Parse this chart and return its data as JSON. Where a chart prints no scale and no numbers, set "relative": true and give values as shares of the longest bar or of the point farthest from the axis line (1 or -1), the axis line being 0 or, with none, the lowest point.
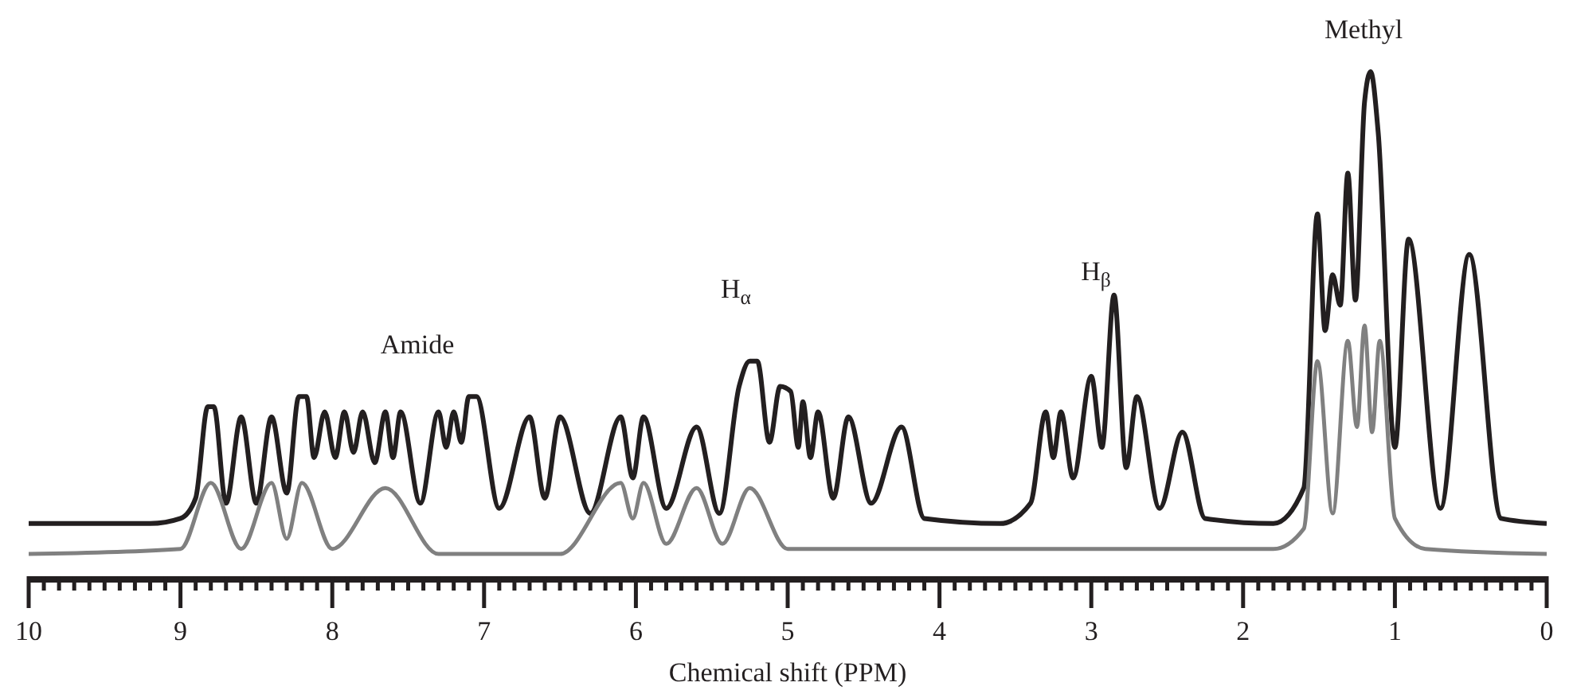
{
  "chart_data": {
    "type": "line",
    "relative": true,
    "xlabel": "Chemical shift (PPM)",
    "xlim": [
      10,
      0
    ],
    "xticks": [
      10,
      {
        "value": 9.9,
        "label": null
      },
      {
        "value": 9.8,
        "label": null
      },
      {
        "value": 9.7,
        "label": null
      },
      {
        "value": 9.6,
        "label": null
      },
      {
        "value": 9.5,
        "label": null
      },
      {
        "value": 9.4,
        "label": null
      },
      {
        "value": 9.3,
        "label": null
      },
      {
        "value": 9.2,
        "label": null
      },
      {
        "value": 9.1,
        "label": null
      },
      9,
      {
        "value": 8.9,
        "label": null
      },
      {
        "value": 8.8,
        "label": null
      },
      {
        "value": 8.7,
        "label": null
      },
      {
        "value": 8.6,
        "label": null
      },
      {
        "value": 8.5,
        "label": null
      },
      {
        "value": 8.4,
        "label": null
      },
      {
        "value": 8.3,
        "label": null
      },
      {
        "value": 8.2,
        "label": null
      },
      {
        "value": 8.1,
        "label": null
      },
      8,
      {
        "value": 7.9,
        "label": null
      },
      {
        "value": 7.8,
        "label": null
      },
      {
        "value": 7.7,
        "label": null
      },
      {
        "value": 7.6,
        "label": null
      },
      {
        "value": 7.5,
        "label": null
      },
      {
        "value": 7.4,
        "label": null
      },
      {
        "value": 7.3,
        "label": null
      },
      {
        "value": 7.2,
        "label": null
      },
      {
        "value": 7.1,
        "label": null
      },
      7,
      {
        "value": 6.9,
        "label": null
      },
      {
        "value": 6.8,
        "label": null
      },
      {
        "value": 6.7,
        "label": null
      },
      {
        "value": 6.6,
        "label": null
      },
      {
        "value": 6.5,
        "label": null
      },
      {
        "value": 6.4,
        "label": null
      },
      {
        "value": 6.3,
        "label": null
      },
      {
        "value": 6.2,
        "label": null
      },
      {
        "value": 6.1,
        "label": null
      },
      6,
      {
        "value": 5.9,
        "label": null
      },
      {
        "value": 5.8,
        "label": null
      },
      {
        "value": 5.7,
        "label": null
      },
      {
        "value": 5.6,
        "label": null
      },
      {
        "value": 5.5,
        "label": null
      },
      {
        "value": 5.4,
        "label": null
      },
      {
        "value": 5.3,
        "label": null
      },
      {
        "value": 5.2,
        "label": null
      },
      {
        "value": 5.1,
        "label": null
      },
      5,
      {
        "value": 4.9,
        "label": null
      },
      {
        "value": 4.8,
        "label": null
      },
      {
        "value": 4.7,
        "label": null
      },
      {
        "value": 4.6,
        "label": null
      },
      {
        "value": 4.5,
        "label": null
      },
      {
        "value": 4.4,
        "label": null
      },
      {
        "value": 4.3,
        "label": null
      },
      {
        "value": 4.2,
        "label": null
      },
      {
        "value": 4.1,
        "label": null
      },
      4,
      {
        "value": 3.9,
        "label": null
      },
      {
        "value": 3.8,
        "label": null
      },
      {
        "value": 3.7,
        "label": null
      },
      {
        "value": 3.6,
        "label": null
      },
      {
        "value": 3.5,
        "label": null
      },
      {
        "value": 3.4,
        "label": null
      },
      {
        "value": 3.3,
        "label": null
      },
      {
        "value": 3.2,
        "label": null
      },
      {
        "value": 3.1,
        "label": null
      },
      3,
      {
        "value": 2.9,
        "label": null
      },
      {
        "value": 2.8,
        "label": null
      },
      {
        "value": 2.7,
        "label": null
      },
      {
        "value": 2.6,
        "label": null
      },
      {
        "value": 2.5,
        "label": null
      },
      {
        "value": 2.4,
        "label": null
      },
      {
        "value": 2.3,
        "label": null
      },
      {
        "value": 2.2,
        "label": null
      },
      {
        "value": 2.1,
        "label": null
      },
      2,
      {
        "value": 1.9,
        "label": null
      },
      {
        "value": 1.8,
        "label": null
      },
      {
        "value": 1.7,
        "label": null
      },
      {
        "value": 1.6,
        "label": null
      },
      {
        "value": 1.5,
        "label": null
      },
      {
        "value": 1.4,
        "label": null
      },
      {
        "value": 1.3,
        "label": null
      },
      {
        "value": 1.2,
        "label": null
      },
      {
        "value": 1.1,
        "label": null
      },
      1,
      {
        "value": 0.9,
        "label": null
      },
      {
        "value": 0.8,
        "label": null
      },
      {
        "value": 0.7,
        "label": null
      },
      {
        "value": 0.6,
        "label": null
      },
      {
        "value": 0.5,
        "label": null
      },
      {
        "value": 0.4,
        "label": null
      },
      {
        "value": 0.3,
        "label": null
      },
      {
        "value": 0.2,
        "label": null
      },
      {
        "value": 0.1,
        "label": null
      },
      0
    ],
    "series": [
      {
        "color": "#231f20",
        "x": [
          10,
          9.2,
          9.0,
          8.9,
          8.82,
          8.78,
          8.7,
          8.6,
          8.5,
          8.4,
          8.3,
          8.22,
          8.17,
          8.12,
          8.05,
          7.98,
          7.92,
          7.86,
          7.8,
          7.72,
          7.65,
          7.6,
          7.55,
          7.42,
          7.3,
          7.25,
          7.2,
          7.15,
          7.1,
          7.05,
          6.9,
          6.7,
          6.6,
          6.5,
          6.3,
          6.1,
          6.02,
          5.95,
          5.8,
          5.6,
          5.45,
          5.32,
          5.25,
          5.2,
          5.12,
          5.05,
          4.98,
          4.93,
          4.9,
          4.85,
          4.8,
          4.7,
          4.6,
          4.45,
          4.25,
          4.1,
          3.6,
          3.4,
          3.3,
          3.25,
          3.2,
          3.12,
          3.0,
          2.93,
          2.85,
          2.77,
          2.7,
          2.55,
          2.4,
          2.25,
          1.8,
          1.6,
          1.51,
          1.46,
          1.41,
          1.36,
          1.31,
          1.26,
          1.2,
          1.16,
          1.11,
          1.0,
          0.91,
          0.7,
          0.51,
          0.3,
          0
        ],
        "values": [
          0.11,
          0.11,
          0.12,
          0.16,
          0.34,
          0.34,
          0.15,
          0.32,
          0.15,
          0.32,
          0.17,
          0.36,
          0.36,
          0.24,
          0.33,
          0.24,
          0.33,
          0.25,
          0.33,
          0.23,
          0.33,
          0.24,
          0.33,
          0.15,
          0.33,
          0.26,
          0.33,
          0.27,
          0.36,
          0.36,
          0.14,
          0.32,
          0.16,
          0.32,
          0.13,
          0.32,
          0.2,
          0.32,
          0.14,
          0.3,
          0.13,
          0.38,
          0.43,
          0.43,
          0.27,
          0.38,
          0.37,
          0.26,
          0.35,
          0.24,
          0.33,
          0.16,
          0.32,
          0.15,
          0.3,
          0.12,
          0.11,
          0.15,
          0.33,
          0.24,
          0.33,
          0.2,
          0.4,
          0.26,
          0.56,
          0.22,
          0.36,
          0.14,
          0.29,
          0.12,
          0.11,
          0.18,
          0.72,
          0.49,
          0.6,
          0.54,
          0.8,
          0.55,
          0.94,
          1,
          0.88,
          0.26,
          0.67,
          0.14,
          0.64,
          0.12,
          0.11
        ]
      },
      {
        "color": "#808080",
        "x": [
          10,
          9.0,
          8.8,
          8.6,
          8.4,
          8.3,
          8.2,
          8.0,
          7.65,
          7.3,
          6.5,
          6.1,
          6.02,
          5.95,
          5.8,
          5.6,
          5.43,
          5.25,
          5.0,
          1.8,
          1.6,
          1.51,
          1.41,
          1.31,
          1.25,
          1.2,
          1.15,
          1.1,
          1.0,
          0.8,
          0
        ],
        "values": [
          0.05,
          0.06,
          0.19,
          0.06,
          0.19,
          0.08,
          0.19,
          0.06,
          0.18,
          0.05,
          0.05,
          0.19,
          0.12,
          0.19,
          0.07,
          0.18,
          0.07,
          0.18,
          0.06,
          0.06,
          0.1,
          0.43,
          0.13,
          0.47,
          0.3,
          0.5,
          0.29,
          0.47,
          0.12,
          0.06,
          0.05
        ]
      }
    ],
    "annotations": [
      "Amide",
      "H$_{α}$",
      "H$_{β}$",
      "Methyl"
    ]
  }
}
